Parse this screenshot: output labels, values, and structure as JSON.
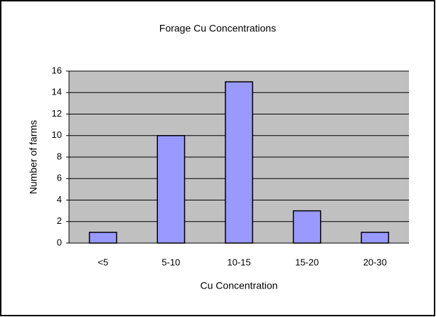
{
  "chart_data": {
    "type": "bar",
    "title": "Forage Cu Concentrations",
    "x_label": "Cu Concentration",
    "y_label": "Number of farms",
    "categories": [
      "<5",
      "5-10",
      "10-15",
      "15-20",
      "20-30"
    ],
    "values": [
      1,
      10,
      15,
      3,
      1
    ],
    "color": "#9999ff",
    "ylim": [
      0,
      16
    ],
    "yticks": [
      0,
      2,
      4,
      6,
      8,
      10,
      12,
      14,
      16
    ],
    "grid": true
  }
}
